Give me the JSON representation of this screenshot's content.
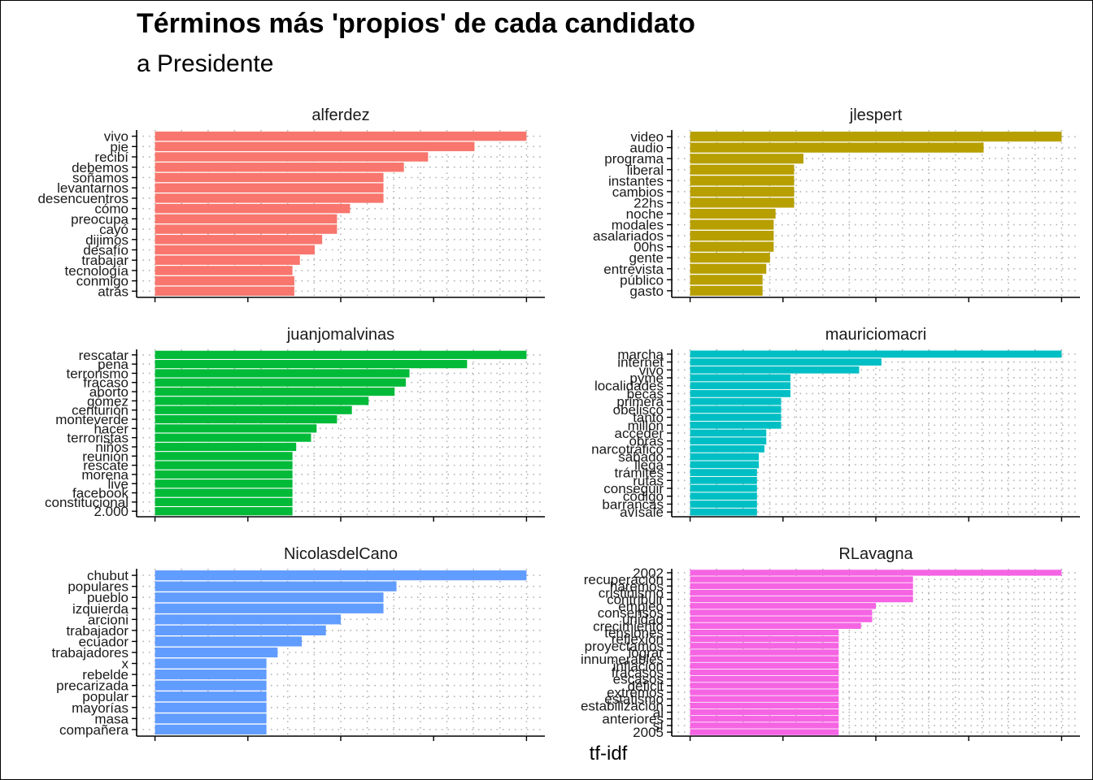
{
  "title": "Términos más 'propios' de cada candidato",
  "subtitle": "a Presidente",
  "xlabel": "tf-idf",
  "chart_data": {
    "type": "bar",
    "orientation": "horizontal",
    "facets": "3x2",
    "grid": "dotted",
    "title": "Términos más 'propios' de cada candidato",
    "subtitle": "a Presidente",
    "xlabel": "tf-idf",
    "ylabel": "",
    "series": [
      {
        "name": "alferdez",
        "color": "#F8766D",
        "categories": [
          "vivo",
          "pie",
          "recibí",
          "debemos",
          "soñamos",
          "levantarnos",
          "desencuentros",
          "cómo",
          "preocupa",
          "cayó",
          "dijimos",
          "desafío",
          "trabajar",
          "tecnología",
          "conmigo",
          "atrás"
        ],
        "values": [
          1.0,
          0.86,
          0.735,
          0.67,
          0.615,
          0.615,
          0.615,
          0.525,
          0.49,
          0.49,
          0.45,
          0.43,
          0.39,
          0.37,
          0.375,
          0.375
        ]
      },
      {
        "name": "jlespert",
        "color": "#B79F00",
        "categories": [
          "video",
          "audio",
          "programa",
          "liberal",
          "instantes",
          "cambios",
          "22hs",
          "noche",
          "modales",
          "asalariados",
          "00hs",
          "gente",
          "entrevista",
          "público",
          "gasto"
        ],
        "values": [
          1.0,
          0.79,
          0.305,
          0.28,
          0.28,
          0.28,
          0.28,
          0.23,
          0.225,
          0.225,
          0.225,
          0.215,
          0.205,
          0.195,
          0.195
        ]
      },
      {
        "name": "juanjomalvinas",
        "color": "#00BA38",
        "categories": [
          "rescatar",
          "pena",
          "terrorismo",
          "fracaso",
          "aborto",
          "gómez",
          "centurión",
          "monteverde",
          "hacer",
          "terroristas",
          "niños",
          "reunión",
          "rescate",
          "morena",
          "live",
          "facebook",
          "constitucional",
          "2.000"
        ],
        "values": [
          1.0,
          0.84,
          0.685,
          0.675,
          0.645,
          0.575,
          0.53,
          0.49,
          0.435,
          0.42,
          0.38,
          0.37,
          0.37,
          0.37,
          0.37,
          0.37,
          0.37,
          0.37
        ]
      },
      {
        "name": "mauriciomacri",
        "color": "#00BFC4",
        "categories": [
          "marcha",
          "internet",
          "vivo",
          "pyme",
          "localidades",
          "becas",
          "primera",
          "obelisco",
          "tanto",
          "millón",
          "acceder",
          "obras",
          "narcotráfico",
          "sábado",
          "llega",
          "trámites",
          "rutas",
          "conseguir",
          "código",
          "barrancas",
          "avísale"
        ],
        "values": [
          1.0,
          0.515,
          0.455,
          0.27,
          0.27,
          0.27,
          0.245,
          0.245,
          0.245,
          0.245,
          0.205,
          0.205,
          0.2,
          0.185,
          0.185,
          0.18,
          0.18,
          0.18,
          0.18,
          0.18,
          0.18
        ]
      },
      {
        "name": "NicolasdelCano",
        "color": "#619CFF",
        "categories": [
          "chubut",
          "populares",
          "pueblo",
          "izquierda",
          "arcioni",
          "trabajador",
          "ecuador",
          "trabajadores",
          "x",
          "rebelde",
          "precarizada",
          "popular",
          "mayorías",
          "masa",
          "compañera"
        ],
        "values": [
          1.0,
          0.65,
          0.615,
          0.615,
          0.5,
          0.46,
          0.395,
          0.33,
          0.3,
          0.3,
          0.3,
          0.3,
          0.3,
          0.3,
          0.3
        ]
      },
      {
        "name": "RLavagna",
        "color": "#F564E3",
        "categories": [
          "2002",
          "recuperación",
          "haremos",
          "cristinismo",
          "contribuir",
          "empleo",
          "consensos",
          "unidad",
          "crecimiento",
          "tensiones",
          "reflexión",
          "proyectamos",
          "lograr",
          "innumerables",
          "inflación",
          "fracasos",
          "escasos",
          "déficit",
          "extremos",
          "estatismo",
          "estabilización",
          "al",
          "anteriores",
          "sí",
          "2005"
        ],
        "values": [
          1.0,
          0.6,
          0.6,
          0.6,
          0.6,
          0.5,
          0.49,
          0.49,
          0.46,
          0.4,
          0.4,
          0.4,
          0.4,
          0.4,
          0.4,
          0.4,
          0.4,
          0.4,
          0.4,
          0.4,
          0.4,
          0.4,
          0.4,
          0.4,
          0.4
        ]
      }
    ]
  }
}
